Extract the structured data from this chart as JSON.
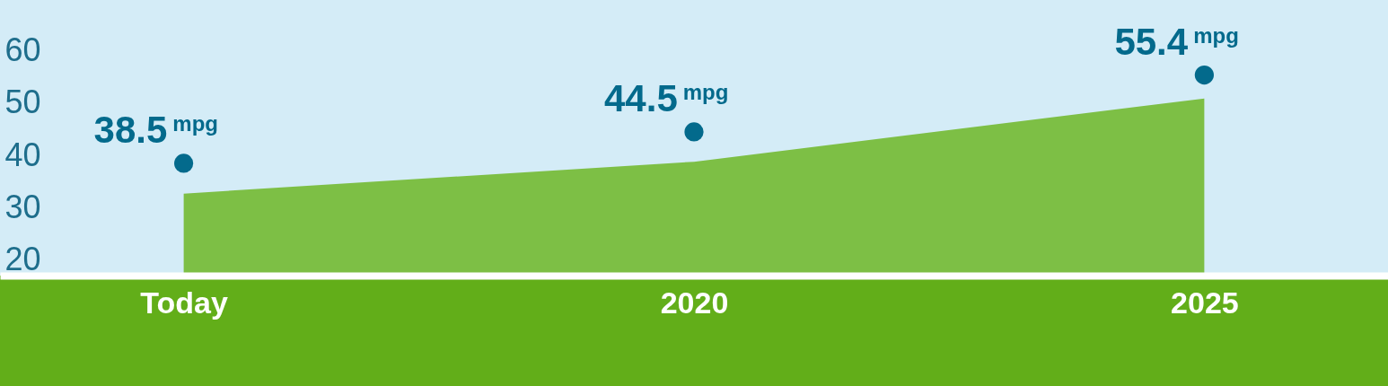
{
  "chart_data": {
    "type": "scatter",
    "categories": [
      "Today",
      "2020",
      "2025"
    ],
    "series": [
      {
        "type": "area",
        "color": "#7dbf45",
        "values": [
          32.7,
          38.8,
          50.9
        ]
      },
      {
        "color": "#036a8c",
        "marker": "circle",
        "values": [
          38.5,
          44.5,
          55.4
        ],
        "value_labels": [
          "38.5$^{mpg}$",
          "44.5$^{mpg}$",
          "55.4$^{mpg}$"
        ]
      }
    ],
    "ylim": [
      17,
      64.6
    ],
    "yticks": [
      20,
      30,
      40,
      50,
      60
    ],
    "grid": false
  }
}
